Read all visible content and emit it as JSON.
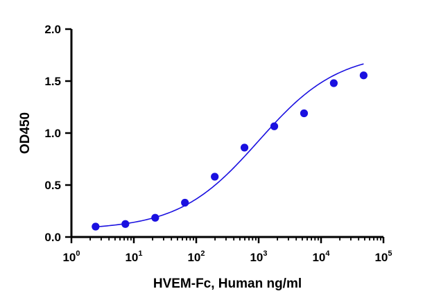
{
  "chart_data": {
    "type": "scatter",
    "title": "",
    "xlabel": "HVEM-Fc, Human ng/ml",
    "ylabel": "OD450",
    "xscale": "log",
    "xlim": [
      1,
      100000
    ],
    "ylim": [
      0,
      2.0
    ],
    "x_ticks": [
      {
        "base": "10",
        "exp": "0",
        "value": 1
      },
      {
        "base": "10",
        "exp": "1",
        "value": 10
      },
      {
        "base": "10",
        "exp": "2",
        "value": 100
      },
      {
        "base": "10",
        "exp": "3",
        "value": 1000
      },
      {
        "base": "10",
        "exp": "4",
        "value": 10000
      },
      {
        "base": "10",
        "exp": "5",
        "value": 100000
      }
    ],
    "y_ticks": [
      {
        "label": "0.0",
        "value": 0.0
      },
      {
        "label": "0.5",
        "value": 0.5
      },
      {
        "label": "1.0",
        "value": 1.0
      },
      {
        "label": "1.5",
        "value": 1.5
      },
      {
        "label": "2.0",
        "value": 2.0
      }
    ],
    "grid": false,
    "legend": "none",
    "series": [
      {
        "points": [
          {
            "x": 2.44,
            "y": 0.1
          },
          {
            "x": 7.32,
            "y": 0.125
          },
          {
            "x": 22.0,
            "y": 0.185
          },
          {
            "x": 65.9,
            "y": 0.33
          },
          {
            "x": 198,
            "y": 0.58
          },
          {
            "x": 593,
            "y": 0.86
          },
          {
            "x": 1780,
            "y": 1.065
          },
          {
            "x": 5340,
            "y": 1.19
          },
          {
            "x": 16000,
            "y": 1.48
          },
          {
            "x": 48100,
            "y": 1.555
          }
        ],
        "color": "#1a10e0"
      }
    ],
    "fit_curve": {
      "type": "4PL",
      "bottom": 0.07,
      "top": 1.78,
      "ec50": 1000,
      "hill": 0.68,
      "color": "#1a10e0"
    }
  }
}
